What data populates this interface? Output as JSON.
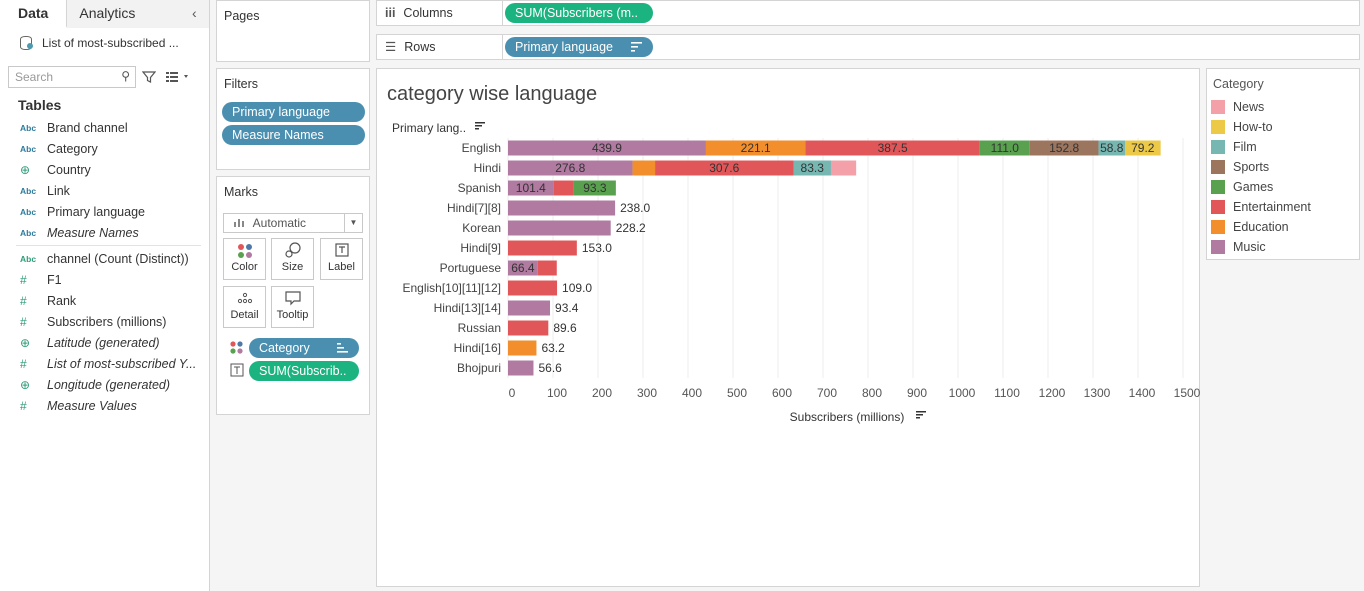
{
  "data_pane": {
    "tabs": [
      "Data",
      "Analytics"
    ],
    "datasource": "List of most-subscribed ...",
    "search_placeholder": "Search",
    "tables_heading": "Tables",
    "fields": [
      {
        "type": "Abc",
        "label": "Brand channel",
        "italic": false
      },
      {
        "type": "Abc",
        "label": "Category",
        "italic": false
      },
      {
        "type": "globe",
        "label": "Country",
        "italic": false
      },
      {
        "type": "Abc",
        "label": "Link",
        "italic": false
      },
      {
        "type": "Abc",
        "label": "Primary language",
        "italic": false
      },
      {
        "type": "Abc",
        "label": "Measure Names",
        "italic": true
      },
      {
        "type": "Abc-green",
        "label": "channel (Count (Distinct))",
        "italic": false
      },
      {
        "type": "#",
        "label": "F1",
        "italic": false
      },
      {
        "type": "#",
        "label": "Rank",
        "italic": false
      },
      {
        "type": "#",
        "label": "Subscribers (millions)",
        "italic": false
      },
      {
        "type": "globe",
        "label": "Latitude (generated)",
        "italic": true
      },
      {
        "type": "#",
        "label": "List of most-subscribed Y...",
        "italic": true
      },
      {
        "type": "globe",
        "label": "Longitude (generated)",
        "italic": true
      },
      {
        "type": "#",
        "label": "Measure Values",
        "italic": true
      }
    ]
  },
  "pages": {
    "title": "Pages"
  },
  "filters": {
    "title": "Filters",
    "pills": [
      "Primary language",
      "Measure Names"
    ]
  },
  "marks": {
    "title": "Marks",
    "type": "Automatic",
    "buttons": [
      "Color",
      "Size",
      "Label",
      "Detail",
      "Tooltip"
    ],
    "pills": [
      "Category",
      "SUM(Subscrib.."
    ]
  },
  "columns_shelf": {
    "label": "Columns",
    "pill": "SUM(Subscribers (m.."
  },
  "rows_shelf": {
    "label": "Rows",
    "pill": "Primary language"
  },
  "view": {
    "title": "category wise language",
    "row_header": "Primary lang.."
  },
  "legend": {
    "title": "Category",
    "items": [
      {
        "name": "News",
        "color": "#f4a0a8"
      },
      {
        "name": "How-to",
        "color": "#edc948"
      },
      {
        "name": "Film",
        "color": "#76b7b2"
      },
      {
        "name": "Sports",
        "color": "#9c755f"
      },
      {
        "name": "Games",
        "color": "#59a14f"
      },
      {
        "name": "Entertainment",
        "color": "#e15759"
      },
      {
        "name": "Education",
        "color": "#f28e2b"
      },
      {
        "name": "Music",
        "color": "#b07aa1"
      }
    ]
  },
  "chart_data": {
    "type": "bar",
    "orientation": "horizontal",
    "stacked": true,
    "xlabel": "Subscribers (millions)",
    "xlim": [
      0,
      1500
    ],
    "xticks": [
      0,
      100,
      200,
      300,
      400,
      500,
      600,
      700,
      800,
      900,
      1000,
      1100,
      1200,
      1300,
      1400,
      1500
    ],
    "categories": [
      "English",
      "Hindi",
      "Spanish",
      "Hindi[7][8]",
      "Korean",
      "Hindi[9]",
      "Portuguese",
      "English[10][11][12]",
      "Hindi[13][14]",
      "Russian",
      "Hindi[16]",
      "Bhojpuri"
    ],
    "rows": [
      {
        "segments": [
          [
            "Music",
            439.9,
            "439.9"
          ],
          [
            "Education",
            221.1,
            "221.1"
          ],
          [
            "Entertainment",
            387.5,
            "387.5"
          ],
          [
            "Games",
            111.0,
            "111.0"
          ],
          [
            "Sports",
            152.8,
            "152.8"
          ],
          [
            "Film",
            58.8,
            "58.8"
          ],
          [
            "How-to",
            79.2,
            "79.2"
          ]
        ]
      },
      {
        "segments": [
          [
            "Music",
            276.8,
            "276.8"
          ],
          [
            "Education",
            50,
            ""
          ],
          [
            "Entertainment",
            307.6,
            "307.6"
          ],
          [
            "Film",
            83.3,
            "83.3"
          ],
          [
            "News",
            56,
            ""
          ]
        ]
      },
      {
        "segments": [
          [
            "Music",
            101.4,
            "101.4"
          ],
          [
            "Entertainment",
            45,
            ""
          ],
          [
            "Games",
            93.3,
            "93.3"
          ]
        ]
      },
      {
        "segments": [
          [
            "Music",
            238.0,
            ""
          ]
        ],
        "total_label": "238.0"
      },
      {
        "segments": [
          [
            "Music",
            228.2,
            ""
          ]
        ],
        "total_label": "228.2"
      },
      {
        "segments": [
          [
            "Entertainment",
            153.0,
            ""
          ]
        ],
        "total_label": "153.0"
      },
      {
        "segments": [
          [
            "Music",
            66.4,
            "66.4"
          ],
          [
            "Entertainment",
            42,
            ""
          ]
        ]
      },
      {
        "segments": [
          [
            "Entertainment",
            109.0,
            ""
          ]
        ],
        "total_label": "109.0"
      },
      {
        "segments": [
          [
            "Music",
            93.4,
            ""
          ]
        ],
        "total_label": "93.4"
      },
      {
        "segments": [
          [
            "Entertainment",
            89.6,
            ""
          ]
        ],
        "total_label": "89.6"
      },
      {
        "segments": [
          [
            "Education",
            63.2,
            ""
          ]
        ],
        "total_label": "63.2"
      },
      {
        "segments": [
          [
            "Music",
            56.6,
            ""
          ]
        ],
        "total_label": "56.6"
      }
    ]
  }
}
